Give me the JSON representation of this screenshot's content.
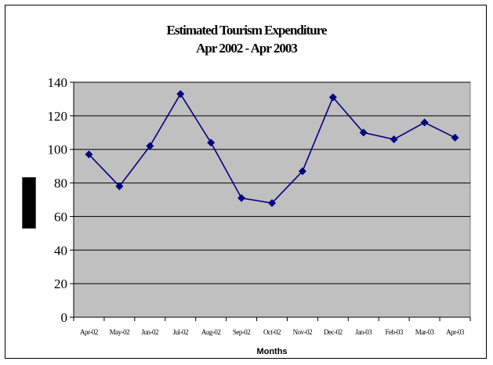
{
  "chart_data": {
    "type": "line",
    "title": "Estimated Tourism Expenditure",
    "subtitle": "Apr 2002 - Apr 2003",
    "xlabel": "Months",
    "ylabel": "",
    "categories": [
      "Apr-02",
      "May-02",
      "Jun-02",
      "Jul-02",
      "Aug-02",
      "Sep-02",
      "Oct-02",
      "Nov-02",
      "Dec-02",
      "Jan-03",
      "Feb-03",
      "Mar-03",
      "Apr-03"
    ],
    "series": [
      {
        "values": [
          97,
          78,
          102,
          133,
          104,
          71,
          68,
          87,
          131,
          110,
          106,
          116,
          107
        ]
      }
    ],
    "ylim": [
      0,
      140
    ],
    "yticks": [
      0,
      20,
      40,
      60,
      80,
      100,
      120,
      140
    ],
    "grid": true,
    "colors": {
      "line": "#000080",
      "plot_bg": "#c0c0c0",
      "gridline": "#000000"
    }
  }
}
